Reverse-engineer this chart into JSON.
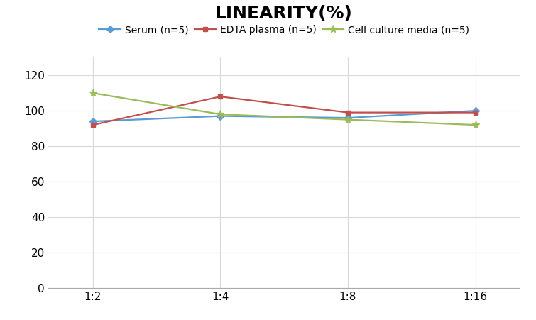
{
  "title": "LINEARITY(%)",
  "x_labels": [
    "1:2",
    "1:4",
    "1:8",
    "1:16"
  ],
  "x_positions": [
    0,
    1,
    2,
    3
  ],
  "series": [
    {
      "label": "Serum (n=5)",
      "values": [
        94,
        97,
        96,
        100
      ],
      "color": "#5b9bd5",
      "marker": "D",
      "markersize": 5,
      "linewidth": 1.6
    },
    {
      "label": "EDTA plasma (n=5)",
      "values": [
        92,
        108,
        99,
        99
      ],
      "color": "#c0504d",
      "marker": "s",
      "markersize": 5,
      "linewidth": 1.6
    },
    {
      "label": "Cell culture media (n=5)",
      "values": [
        110,
        98,
        95,
        92
      ],
      "color": "#9bbb59",
      "marker": "*",
      "markersize": 8,
      "linewidth": 1.6
    }
  ],
  "ylim": [
    0,
    130
  ],
  "yticks": [
    0,
    20,
    40,
    60,
    80,
    100,
    120
  ],
  "title_fontsize": 18,
  "title_fontweight": "bold",
  "legend_fontsize": 10,
  "tick_fontsize": 11,
  "background_color": "#ffffff",
  "grid_color": "#d8d8d8",
  "xlim": [
    -0.35,
    3.35
  ]
}
